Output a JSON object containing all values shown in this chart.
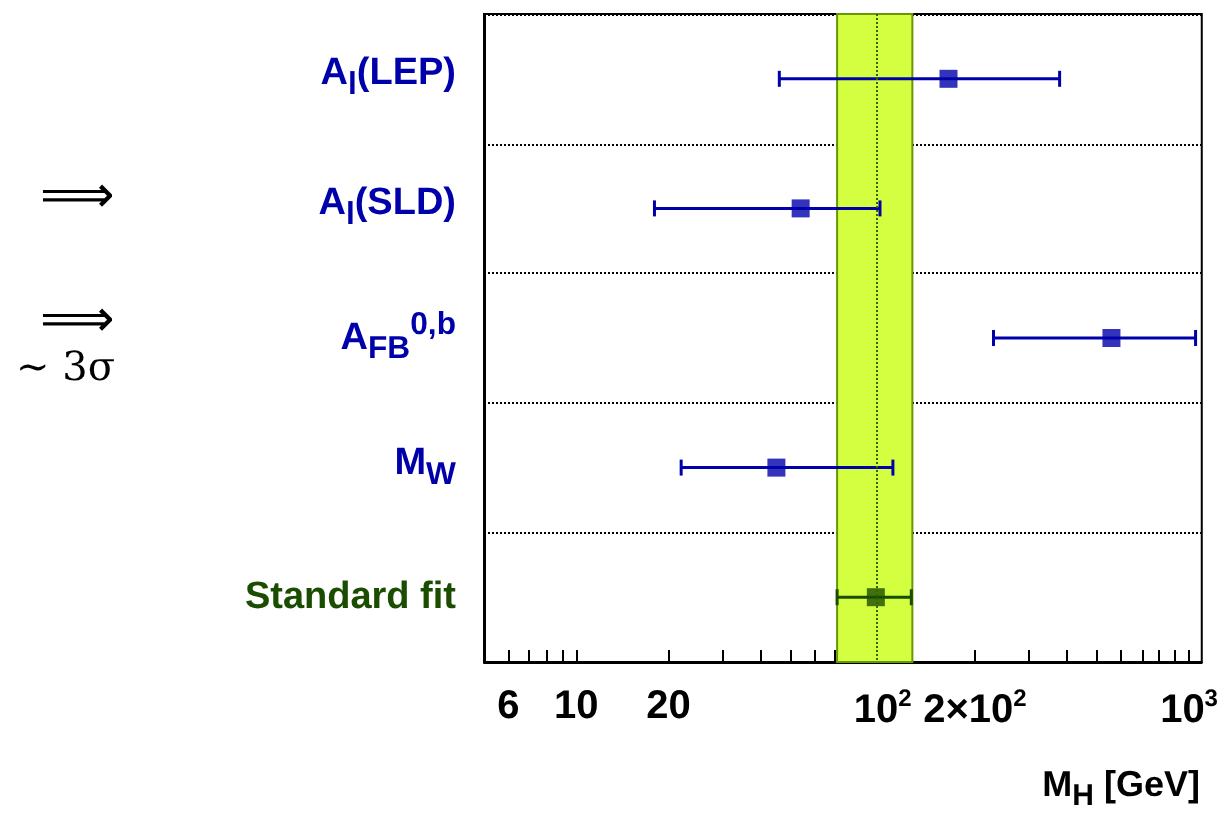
{
  "chart_data": {
    "type": "scatter",
    "orientation": "horizontal",
    "xlabel": "M$_{H}$ [GeV]",
    "categories": [
      "A$_{l}$(LEP)",
      "A$_{l}$(SLD)",
      "A$_{FB}$$^{0,b}$",
      "M$_{W}$",
      "Standard fit"
    ],
    "values": [
      164,
      54,
      558,
      45,
      95
    ],
    "errors": [
      [
        46,
        378
      ],
      [
        18,
        98
      ],
      [
        230,
        1050
      ],
      [
        22,
        108
      ],
      [
        71,
        124
      ]
    ],
    "colors": [
      "#0000aa",
      "#0000aa",
      "#0000aa",
      "#0000aa",
      "#1a4d00"
    ],
    "log": "x",
    "xlim": [
      5,
      1100
    ],
    "xticks": [
      {
        "value": 6,
        "label": "6"
      },
      {
        "value": 7,
        "label": null
      },
      {
        "value": 8,
        "label": null
      },
      {
        "value": 9,
        "label": null
      },
      10,
      20,
      {
        "value": 30,
        "label": null
      },
      {
        "value": 40,
        "label": null
      },
      {
        "value": 50,
        "label": null
      },
      {
        "value": 60,
        "label": null
      },
      {
        "value": 70,
        "label": null
      },
      {
        "value": 80,
        "label": null
      },
      {
        "value": 90,
        "label": null
      },
      {
        "value": 100,
        "label": "10$^{2}$"
      },
      {
        "value": 200,
        "label": "2×10$^{2}$"
      },
      {
        "value": 300,
        "label": null
      },
      {
        "value": 400,
        "label": null
      },
      {
        "value": 500,
        "label": null
      },
      {
        "value": 600,
        "label": null
      },
      {
        "value": 700,
        "label": null
      },
      {
        "value": 800,
        "label": null
      },
      {
        "value": 900,
        "label": null
      },
      {
        "value": 1000,
        "label": "10$^{3}$"
      }
    ],
    "grid": "y",
    "marker": "square",
    "bands": [
      {
        "axis": "x",
        "from": 71,
        "to": 125,
        "color": "#d4ff40"
      }
    ],
    "ref_lines": [
      {
        "axis": "x",
        "value": 95,
        "color": "#336600",
        "line_style": "dotted"
      }
    ],
    "annotations": [
      "⟹",
      "⟹",
      "∼ 3σ"
    ]
  }
}
